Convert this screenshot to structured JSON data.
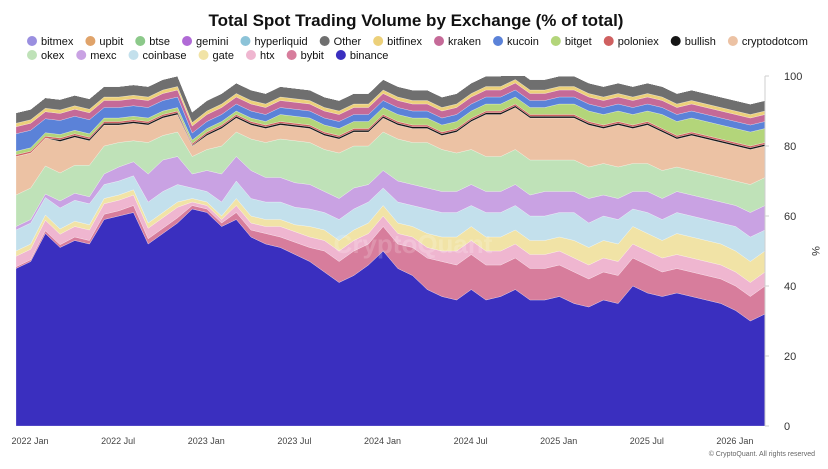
{
  "chart_data": {
    "type": "area",
    "stacked": true,
    "normalized_percent": true,
    "title": "Total Spot Trading Volume by Exchange (% of total)",
    "ylabel": "%",
    "xlabel": "",
    "ylim": [
      0,
      100
    ],
    "y_ticks": [
      0,
      20,
      40,
      60,
      80,
      100
    ],
    "x_ticks": [
      "2022 Jan",
      "2022 Jul",
      "2023 Jan",
      "2023 Jul",
      "2024 Jan",
      "2024 Jul",
      "2025 Jan",
      "2025 Jul",
      "2026 Jan"
    ],
    "x_tick_months": [
      0,
      6,
      12,
      18,
      24,
      30,
      36,
      42,
      48
    ],
    "x_range_months": [
      0,
      51
    ],
    "watermark": "CryptoQuant",
    "credit": "© CryptoQuant. All rights reserved",
    "legend_position": "top",
    "legend": [
      {
        "name": "bitmex",
        "color": "#9a8fe0"
      },
      {
        "name": "upbit",
        "color": "#e0a36a"
      },
      {
        "name": "btse",
        "color": "#8cc98a"
      },
      {
        "name": "gemini",
        "color": "#b06ad6"
      },
      {
        "name": "hyperliquid",
        "color": "#8cc3d8"
      },
      {
        "name": "Other",
        "color": "#6f6f6f"
      },
      {
        "name": "bitfinex",
        "color": "#ecd07a"
      },
      {
        "name": "kraken",
        "color": "#c56a98"
      },
      {
        "name": "kucoin",
        "color": "#5b82d8"
      },
      {
        "name": "bitget",
        "color": "#b3d57a"
      },
      {
        "name": "poloniex",
        "color": "#cf6060"
      },
      {
        "name": "bullish",
        "color": "#151515"
      },
      {
        "name": "cryptodotcom",
        "color": "#ecc2a4"
      },
      {
        "name": "okex",
        "color": "#bfe2b8"
      },
      {
        "name": "mexc",
        "color": "#c9a2e3"
      },
      {
        "name": "coinbase",
        "color": "#c3e0ec"
      },
      {
        "name": "gate",
        "color": "#f1e3a6"
      },
      {
        "name": "htx",
        "color": "#efb6d0"
      },
      {
        "name": "bybit",
        "color": "#d77d9c"
      },
      {
        "name": "binance",
        "color": "#3a2fbf"
      }
    ],
    "months": [
      0,
      1,
      2,
      3,
      4,
      5,
      6,
      7,
      8,
      9,
      10,
      11,
      12,
      13,
      14,
      15,
      16,
      17,
      18,
      19,
      20,
      21,
      22,
      23,
      24,
      25,
      26,
      27,
      28,
      29,
      30,
      31,
      32,
      33,
      34,
      35,
      36,
      37,
      38,
      39,
      40,
      41,
      42,
      43,
      44,
      45,
      46,
      47,
      48,
      49,
      50,
      51
    ],
    "series": [
      {
        "name": "binance",
        "values": [
          45,
          47,
          55,
          51,
          53,
          52,
          59,
          60,
          61,
          52,
          55,
          58,
          62,
          61,
          57,
          59,
          54,
          52,
          51,
          49,
          47,
          44,
          41,
          43,
          46,
          50,
          45,
          43,
          39,
          37,
          36,
          39,
          36,
          37,
          39,
          36,
          36,
          37,
          35,
          34,
          36,
          35,
          40,
          38,
          37,
          38,
          37,
          36,
          35,
          33,
          30,
          32
        ]
      },
      {
        "name": "bybit",
        "values": [
          0.5,
          0.5,
          0.8,
          0.8,
          1,
          1,
          1.5,
          1.5,
          2,
          1.5,
          1.5,
          1.5,
          1,
          1,
          1,
          2,
          2,
          3,
          3,
          3.5,
          4,
          6,
          6,
          7,
          6,
          7,
          7,
          8,
          9,
          10,
          10,
          10,
          10,
          9,
          9,
          9,
          9,
          9,
          9,
          8,
          8,
          8,
          8,
          8,
          7,
          7,
          7,
          7,
          7,
          7,
          7,
          8
        ]
      },
      {
        "name": "htx",
        "values": [
          3,
          3,
          3,
          3,
          3,
          3,
          3,
          3,
          3,
          3,
          3,
          3,
          1,
          1,
          1,
          2,
          2,
          2,
          3,
          3,
          3,
          3,
          3,
          3,
          3,
          3,
          3,
          3,
          3,
          3,
          4,
          4,
          4,
          4,
          4,
          4,
          4,
          4,
          4,
          4,
          4,
          4,
          4,
          4,
          4,
          4,
          4,
          4,
          4,
          4,
          4,
          4
        ]
      },
      {
        "name": "gate",
        "values": [
          1.5,
          1.5,
          1.5,
          1.5,
          1.5,
          1.5,
          1.5,
          1.5,
          1.5,
          1.5,
          1.5,
          1.5,
          1,
          1,
          1,
          2,
          2,
          2,
          2,
          2,
          3,
          3,
          3,
          3,
          3,
          3,
          3,
          3,
          4,
          4,
          4,
          4,
          4,
          4,
          4,
          4,
          4,
          4,
          5,
          5,
          5,
          5,
          5,
          5,
          5,
          6,
          6,
          6,
          6,
          6,
          6,
          6
        ]
      },
      {
        "name": "coinbase",
        "values": [
          6,
          6,
          5,
          6,
          6,
          6,
          4,
          4,
          4,
          6,
          6,
          5,
          3,
          3,
          4,
          5,
          5,
          5,
          5,
          5,
          5,
          5,
          6,
          6,
          6,
          5,
          6,
          6,
          7,
          7,
          7,
          6,
          7,
          7,
          7,
          7,
          7,
          7,
          8,
          7,
          7,
          7,
          5,
          6,
          6,
          6,
          6,
          6,
          6,
          7,
          7,
          6
        ]
      },
      {
        "name": "mexc",
        "values": [
          1,
          1,
          1,
          2,
          2,
          2,
          3,
          4,
          4,
          8,
          9,
          8,
          4,
          6,
          8,
          7,
          8,
          7,
          7,
          7,
          7,
          6,
          6,
          6,
          5,
          5,
          6,
          6,
          6,
          6,
          6,
          6,
          6,
          6,
          6,
          6,
          7,
          6,
          6,
          7,
          6,
          6,
          5,
          6,
          6,
          6,
          6,
          6,
          6,
          6,
          7,
          7
        ]
      },
      {
        "name": "okex",
        "values": [
          9,
          9,
          8,
          8,
          8,
          9,
          8,
          7,
          6,
          9,
          7,
          7,
          5,
          6,
          8,
          7,
          9,
          10,
          11,
          12,
          12,
          12,
          13,
          12,
          11,
          11,
          12,
          12,
          13,
          12,
          11,
          10,
          10,
          10,
          10,
          10,
          9,
          9,
          9,
          9,
          9,
          9,
          8,
          8,
          8,
          7,
          7,
          7,
          7,
          7,
          8,
          8
        ]
      },
      {
        "name": "cryptodotcom",
        "values": [
          11,
          10,
          8,
          9,
          8,
          7,
          6,
          5,
          5,
          5,
          5,
          5,
          3,
          4,
          5,
          4,
          4,
          4,
          4,
          4,
          4,
          4,
          4,
          4,
          4,
          4,
          4,
          4,
          4,
          4,
          6,
          8,
          12,
          12,
          12,
          12,
          12,
          12,
          12,
          12,
          10,
          12,
          10,
          11,
          11,
          8,
          10,
          10,
          10,
          10,
          10,
          9
        ]
      },
      {
        "name": "bullish",
        "values": [
          0,
          0,
          0,
          0.5,
          0.5,
          0.5,
          0.5,
          0.5,
          0.5,
          0.5,
          0.5,
          0.5,
          0.2,
          0.5,
          0.5,
          0.5,
          0.5,
          0.5,
          0.5,
          0.5,
          0.5,
          0.5,
          0.5,
          0.5,
          0.5,
          0.5,
          0.5,
          0.5,
          0.5,
          0.5,
          0.5,
          0.5,
          0.5,
          0.5,
          0.5,
          0.5,
          0.5,
          0.5,
          0.5,
          0.5,
          0.5,
          0.5,
          0.5,
          0.5,
          0.5,
          0.5,
          0.5,
          0.5,
          0.5,
          0.5,
          0.5,
          0.5
        ]
      },
      {
        "name": "poloniex",
        "values": [
          0.5,
          0.5,
          0.5,
          0.5,
          0.5,
          0.5,
          0.5,
          0.5,
          0.5,
          0.5,
          0.5,
          0.5,
          0.5,
          0.5,
          0.5,
          0.5,
          0.5,
          0.5,
          0.5,
          0.5,
          0.5,
          0.5,
          0.5,
          0.5,
          0.5,
          0.5,
          0.5,
          0.5,
          0.5,
          0.5,
          0.5,
          0.5,
          0.5,
          0.5,
          0.5,
          0.5,
          0.5,
          0.5,
          0.5,
          0.5,
          0.5,
          0.5,
          0.5,
          0.5,
          0.5,
          0.5,
          0.5,
          0.5,
          0.5,
          0.5,
          0.5,
          0.5
        ]
      },
      {
        "name": "bitget",
        "values": [
          1,
          1,
          1,
          1,
          1,
          1,
          1,
          1,
          1,
          1,
          1,
          1,
          1,
          1,
          1,
          1,
          1,
          1,
          2,
          2,
          2,
          2,
          2,
          2,
          2,
          2,
          2,
          2,
          2,
          2,
          2,
          2,
          2,
          2,
          2,
          2,
          2,
          3,
          3,
          3,
          3,
          3,
          3,
          3,
          4,
          4,
          4,
          4,
          4,
          4,
          4,
          4
        ]
      },
      {
        "name": "kucoin",
        "values": [
          5,
          5,
          4,
          4,
          4,
          4,
          3,
          3,
          3,
          3,
          3,
          3,
          2,
          2,
          2,
          2,
          2,
          2,
          2,
          2,
          2,
          2,
          2,
          2,
          2,
          2,
          2,
          2,
          2,
          2,
          2,
          2,
          2,
          2,
          2,
          2,
          2,
          2,
          2,
          2,
          2,
          2,
          2,
          2,
          2,
          2,
          2,
          2,
          2,
          2,
          2,
          2
        ]
      },
      {
        "name": "kraken",
        "values": [
          2,
          2,
          2,
          2,
          2,
          2,
          2,
          2,
          2,
          2,
          2,
          2,
          2,
          2,
          2,
          2,
          2,
          2,
          2,
          2,
          2,
          2,
          2,
          2,
          2,
          2,
          2,
          2,
          2,
          2,
          2,
          2,
          2,
          2,
          2,
          2,
          2,
          2,
          2,
          2,
          2,
          2,
          2,
          2,
          2,
          2,
          2,
          2,
          2,
          2,
          2,
          2
        ]
      },
      {
        "name": "bitfinex",
        "values": [
          1,
          1,
          1,
          1,
          1,
          1,
          1,
          1,
          1,
          1,
          1,
          1,
          1,
          1,
          1,
          1,
          1,
          1,
          1,
          1,
          1,
          1,
          1,
          1,
          1,
          1,
          1,
          1,
          1,
          1,
          1,
          1,
          1,
          1,
          1,
          1,
          1,
          1,
          1,
          1,
          1,
          1,
          1,
          1,
          1,
          1,
          1,
          1,
          1,
          1,
          1,
          1
        ]
      },
      {
        "name": "Other",
        "values": [
          3,
          3,
          3,
          3,
          3,
          3,
          3,
          3,
          3,
          3,
          3,
          3,
          3,
          3,
          3,
          3,
          3,
          3,
          3,
          3,
          3,
          3,
          3,
          3,
          3,
          3,
          3,
          3,
          3,
          3,
          3,
          3,
          3,
          3,
          3,
          3,
          3,
          3,
          3,
          3,
          3,
          3,
          3,
          3,
          3,
          3,
          3,
          3,
          3,
          3,
          3,
          3
        ]
      },
      {
        "name": "hyperliquid",
        "values": [
          0,
          0,
          0,
          0,
          0,
          0,
          0,
          0,
          0,
          0,
          0,
          0,
          0,
          0,
          0,
          0,
          0,
          0,
          0,
          0,
          0,
          0,
          0,
          0,
          0,
          0,
          0,
          0,
          0,
          0,
          0,
          0,
          0,
          0,
          0,
          0,
          0,
          0,
          0,
          0,
          0,
          0,
          0,
          0,
          0,
          0,
          0,
          0,
          0,
          0,
          0,
          0
        ]
      },
      {
        "name": "gemini",
        "values": [
          0,
          0,
          0,
          0,
          0,
          0,
          0,
          0,
          0,
          0,
          0,
          0,
          0,
          0,
          0,
          0,
          0,
          0,
          0,
          0,
          0,
          0,
          0,
          0,
          0,
          0,
          0,
          0,
          0,
          0,
          0,
          0,
          0,
          0,
          0,
          0,
          0,
          0,
          0,
          0,
          0,
          0,
          0,
          0,
          0,
          0,
          0,
          0,
          0,
          0,
          0,
          0
        ]
      },
      {
        "name": "btse",
        "values": [
          0,
          0,
          0,
          0,
          0,
          0,
          0,
          0,
          0,
          0,
          0,
          0,
          0,
          0,
          0,
          0,
          0,
          0,
          0,
          0,
          0,
          0,
          0,
          0,
          0,
          0,
          0,
          0,
          0,
          0,
          0,
          0,
          0,
          0,
          0,
          0,
          0,
          0,
          0,
          0,
          0,
          0,
          0,
          0,
          0,
          0,
          0,
          0,
          0,
          0,
          0,
          0
        ]
      },
      {
        "name": "upbit",
        "values": [
          0,
          0,
          0,
          0,
          0,
          0,
          0,
          0,
          0,
          0,
          0,
          0,
          0,
          0,
          0,
          0,
          0,
          0,
          0,
          0,
          0,
          0,
          0,
          0,
          0,
          0,
          0,
          0,
          0,
          0,
          0,
          0,
          0,
          0,
          0,
          0,
          0,
          0,
          0,
          0,
          0,
          0,
          0,
          0,
          0,
          0,
          0,
          0,
          0,
          0,
          0,
          0
        ]
      },
      {
        "name": "bitmex",
        "values": [
          0,
          0,
          0,
          0,
          0,
          0,
          0,
          0,
          0,
          0,
          0,
          0,
          0,
          0,
          0,
          0,
          0,
          0,
          0,
          0,
          0,
          0,
          0,
          0,
          0,
          0,
          0,
          0,
          0,
          0,
          0,
          0,
          0,
          0,
          0,
          0,
          0,
          0,
          0,
          0,
          0,
          0,
          0,
          0,
          0,
          0,
          0,
          0,
          0,
          0,
          0,
          0
        ]
      }
    ]
  }
}
